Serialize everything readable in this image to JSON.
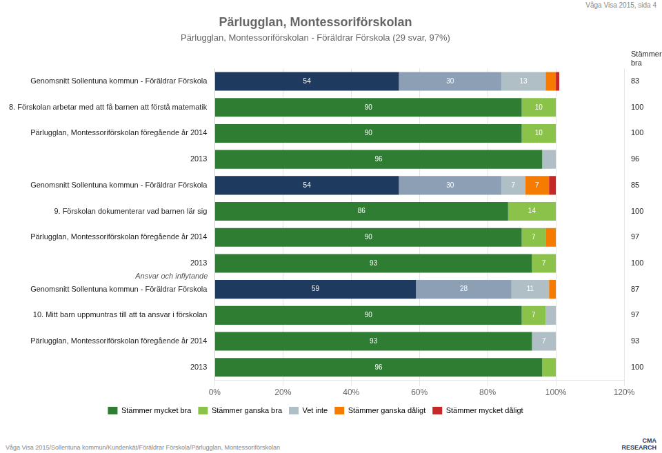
{
  "chart_data": {
    "type": "bar",
    "orientation": "horizontal",
    "stacked": true,
    "title": "Pärlugglan, Montessoriförskolan",
    "subtitle": "Pärlugglan, Montessoriförskolan - Föräldrar Förskola (29 svar, 97%)",
    "watermark": "Våga Visa 2015, sida 4",
    "footer": "Våga Visa 2015/Sollentuna kommun/Kundenkät/Föräldrar Förskola/Pärlugglan, Montessoriförskolan",
    "logo_text": "CMA\nRESEARCH",
    "categories": [
      "Genomsnitt Sollentuna kommun - Föräldrar Förskola",
      "8. Förskolan arbetar med att få barnen att förstå matematik",
      "Pärlugglan, Montessoriförskolan föregående år 2014",
      "2013",
      "Genomsnitt Sollentuna kommun - Föräldrar Förskola",
      "9. Förskolan dokumenterar vad barnen lär sig",
      "Pärlugglan, Montessoriförskolan föregående år 2014",
      "2013",
      "Genomsnitt Sollentuna kommun - Föräldrar Förskola",
      "10. Mitt barn uppmuntras till att ta ansvar i förskolan",
      "Pärlugglan, Montessoriförskolan föregående år 2014",
      "2013"
    ],
    "series": [
      {
        "name": "Stämmer mycket bra",
        "color": "#2e7d32",
        "colors": [
          "#1e3a5f",
          "#2e7d32",
          "#2e7d32",
          "#2e7d32",
          "#1e3a5f",
          "#2e7d32",
          "#2e7d32",
          "#2e7d32",
          "#1e3a5f",
          "#2e7d32",
          "#2e7d32",
          "#2e7d32"
        ],
        "values": [
          54,
          90,
          90,
          96,
          54,
          86,
          90,
          93,
          59,
          90,
          93,
          96
        ],
        "value_labels": [
          "54",
          "90",
          "90",
          "96",
          "54",
          "86",
          "90",
          "93",
          "59",
          "90",
          "93",
          "96"
        ]
      },
      {
        "name": "Stämmer ganska bra",
        "color": "#8bc34a",
        "colors": [
          "#8c9fb5",
          "#8bc34a",
          "#8bc34a",
          "#8bc34a",
          "#8c9fb5",
          "#8bc34a",
          "#8bc34a",
          "#8bc34a",
          "#8c9fb5",
          "#8bc34a",
          "#8bc34a",
          "#8bc34a"
        ],
        "values": [
          30,
          10,
          10,
          0,
          30,
          14,
          7,
          7,
          28,
          7,
          0,
          4
        ],
        "value_labels": [
          "30",
          "10",
          "10",
          null,
          "30",
          "14",
          "7",
          "7",
          "28",
          "7",
          null,
          null
        ]
      },
      {
        "name": "Vet inte",
        "color": "#b0bec5",
        "colors": [
          "#b0bec5",
          "#b0bec5",
          "#b0bec5",
          "#b0bec5",
          "#b0bec5",
          "#b0bec5",
          "#b0bec5",
          "#b0bec5",
          "#b0bec5",
          "#b0bec5",
          "#b0bec5",
          "#b0bec5"
        ],
        "values": [
          13,
          0,
          0,
          4,
          7,
          0,
          0,
          0,
          11,
          3,
          7,
          0
        ],
        "value_labels": [
          "13",
          null,
          null,
          null,
          "7",
          null,
          null,
          null,
          "11",
          null,
          "7",
          null
        ]
      },
      {
        "name": "Stämmer ganska dåligt",
        "color": "#f57c00",
        "colors": [
          "#f57c00",
          "#f57c00",
          "#f57c00",
          "#f57c00",
          "#f57c00",
          "#f57c00",
          "#f57c00",
          "#f57c00",
          "#f57c00",
          "#f57c00",
          "#f57c00",
          "#f57c00"
        ],
        "values": [
          3,
          0,
          0,
          0,
          7,
          0,
          3,
          0,
          2,
          0,
          0,
          0
        ],
        "value_labels": [
          null,
          null,
          null,
          null,
          "7",
          null,
          null,
          null,
          null,
          null,
          null,
          null
        ]
      },
      {
        "name": "Stämmer mycket dåligt",
        "color": "#c62828",
        "colors": [
          "#c62828",
          "#c62828",
          "#c62828",
          "#c62828",
          "#c62828",
          "#c62828",
          "#c62828",
          "#c62828",
          "#c62828",
          "#c62828",
          "#c62828",
          "#c62828"
        ],
        "values": [
          1,
          0,
          0,
          0,
          2,
          0,
          0,
          0,
          0,
          0,
          0,
          0
        ],
        "value_labels": [
          null,
          null,
          null,
          null,
          null,
          null,
          null,
          null,
          null,
          null,
          null,
          null
        ]
      }
    ],
    "xlim": [
      0,
      120
    ],
    "xticks": [
      {
        "value": 0,
        "label": "0%"
      },
      {
        "value": 20,
        "label": "20%"
      },
      {
        "value": 40,
        "label": "40%"
      },
      {
        "value": 60,
        "label": "60%"
      },
      {
        "value": 80,
        "label": "80%"
      },
      {
        "value": 100,
        "label": "100%"
      },
      {
        "value": 120,
        "label": "120%"
      }
    ],
    "grid": true,
    "legend": "bottom",
    "data_labels": true,
    "right_labels": {
      "title": "Stämmer\nbra",
      "values": [
        83,
        100,
        100,
        96,
        85,
        100,
        97,
        100,
        87,
        97,
        93,
        100
      ]
    },
    "annotations": [
      {
        "text": "Ansvar och inflytande",
        "row": 8
      }
    ]
  }
}
